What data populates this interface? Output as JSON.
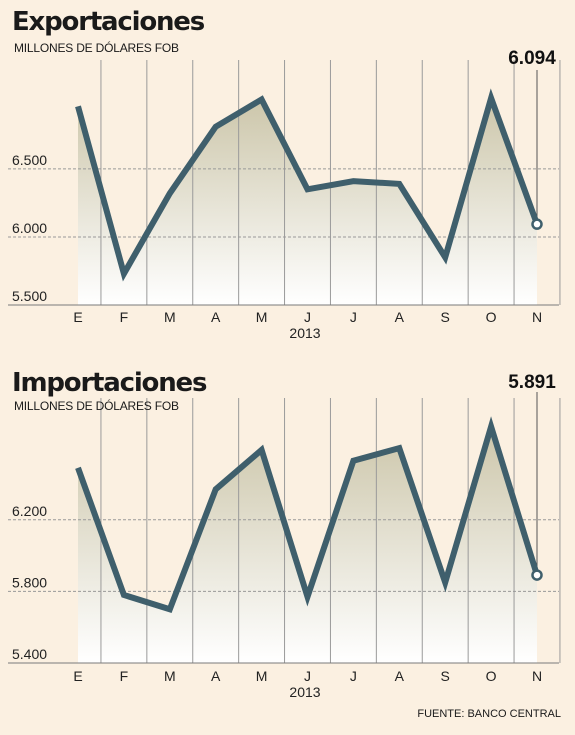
{
  "source": "FUENTE: BANCO CENTRAL",
  "colors": {
    "background": "#fbf0e1",
    "line": "#3f5f6c",
    "gridline": "#999999",
    "column_divider": "#9a9a9a",
    "area_top": "#ccc6aa",
    "area_bottom": "#ffffff"
  },
  "chart_data": [
    {
      "type": "line",
      "title": "Exportaciones",
      "subtitle": "MILLONES DE DÓLARES FOB",
      "categories": [
        "E",
        "F",
        "M",
        "A",
        "M",
        "J",
        "J",
        "A",
        "S",
        "O",
        "N"
      ],
      "xlabel": "2013",
      "values": [
        6960,
        5730,
        6320,
        6810,
        7010,
        6350,
        6410,
        6390,
        5850,
        7020,
        6094
      ],
      "ylim": [
        5500,
        7300
      ],
      "yticks": [
        5500,
        6000,
        6500
      ],
      "ytick_labels": [
        "5.500",
        "6.000",
        "6.500"
      ],
      "gridlines": [
        6000,
        6500
      ],
      "callout": {
        "index": 10,
        "label": "6.094"
      }
    },
    {
      "type": "line",
      "title": "Importaciones",
      "subtitle": "MILLONES DE DÓLARES FOB",
      "categories": [
        "E",
        "F",
        "M",
        "A",
        "M",
        "J",
        "J",
        "A",
        "S",
        "O",
        "N"
      ],
      "xlabel": "2013",
      "values": [
        6490,
        5780,
        5700,
        6370,
        6590,
        5770,
        6530,
        6600,
        5850,
        6720,
        5891
      ],
      "ylim": [
        5400,
        6880
      ],
      "yticks": [
        5400,
        5800,
        6200
      ],
      "ytick_labels": [
        "5.400",
        "5.800",
        "6.200"
      ],
      "gridlines": [
        5800,
        6200
      ],
      "callout": {
        "index": 10,
        "label": "5.891"
      }
    }
  ]
}
